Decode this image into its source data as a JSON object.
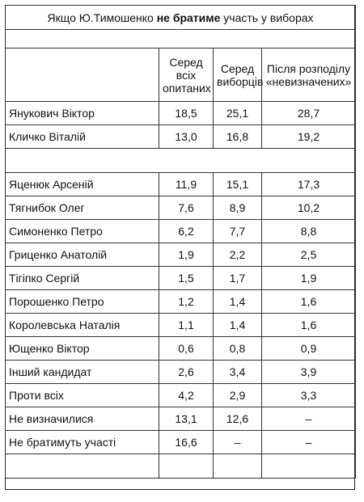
{
  "title": {
    "prefix": "Якщо Ю.Тимошенко ",
    "bold": "не братиме",
    "suffix": " участь у виборах"
  },
  "columns": [
    "Серед всіх опитаних",
    "Серед виборців",
    "Після розподілу «невизначених»"
  ],
  "group1": [
    {
      "name": "Янукович Віктор",
      "c1": "18,5",
      "c2": "25,1",
      "c3": "28,7"
    },
    {
      "name": "Кличко Віталій",
      "c1": "13,0",
      "c2": "16,8",
      "c3": "19,2"
    }
  ],
  "group2": [
    {
      "name": "Яценюк Арсеній",
      "c1": "11,9",
      "c2": "15,1",
      "c3": "17,3"
    },
    {
      "name": "Тягнибок Олег",
      "c1": "7,6",
      "c2": "8,9",
      "c3": "10,2"
    },
    {
      "name": "Симоненко Петро",
      "c1": "6,2",
      "c2": "7,7",
      "c3": "8,8"
    },
    {
      "name": "Гриценко Анатолій",
      "c1": "1,9",
      "c2": "2,2",
      "c3": "2,5"
    },
    {
      "name": "Тігіпко Сергій",
      "c1": "1,5",
      "c2": "1,7",
      "c3": "1,9"
    },
    {
      "name": "Порошенко Петро",
      "c1": "1,2",
      "c2": "1,4",
      "c3": "1,6"
    },
    {
      "name": "Королевська Наталія",
      "c1": "1,1",
      "c2": "1,4",
      "c3": "1,6"
    },
    {
      "name": "Ющенко Віктор",
      "c1": "0,6",
      "c2": "0,8",
      "c3": "0,9"
    },
    {
      "name": "Інший кандидат",
      "c1": "2,6",
      "c2": "3,4",
      "c3": "3,9"
    },
    {
      "name": "Проти всіх",
      "c1": "4,2",
      "c2": "2,9",
      "c3": "3,3"
    },
    {
      "name": "Не визначилися",
      "c1": "13,1",
      "c2": "12,6",
      "c3": "–"
    },
    {
      "name": "Не братимуть участі",
      "c1": "16,6",
      "c2": "–",
      "c3": "–"
    }
  ]
}
